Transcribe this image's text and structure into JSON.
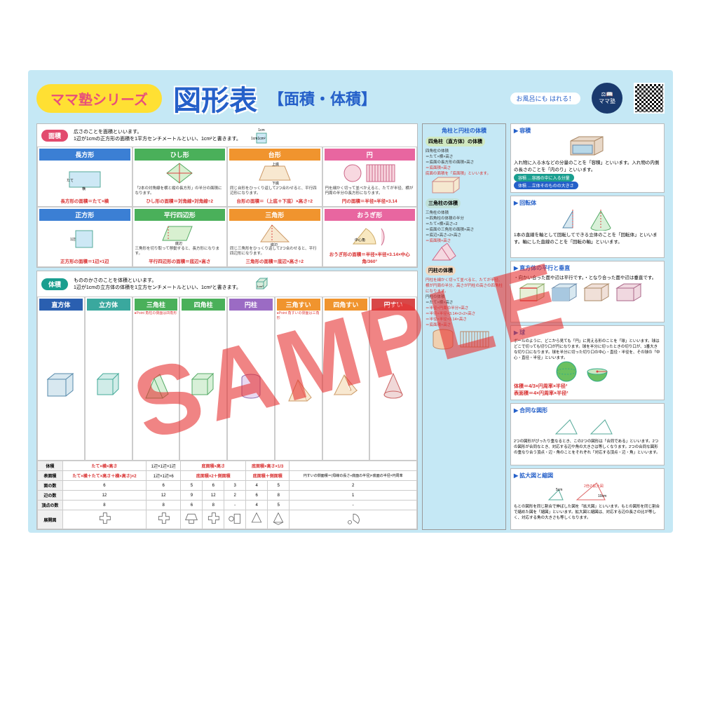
{
  "header": {
    "series": "ママ塾シリーズ",
    "title": "図形表",
    "subtitle": "【面積・体積】",
    "bath": "お風呂にも\nはれる！",
    "logo": "ママ塾"
  },
  "area": {
    "label": "面積",
    "intro": "広さのことを面積といいます。\n1辺が1cmの正方形の面積を1平方センチメートルといい、1cm²と書きます。",
    "shapes": [
      {
        "name": "長方形",
        "hc": "h-blue",
        "formula": "長方形の面積＝たて×横",
        "desc": ""
      },
      {
        "name": "ひし形",
        "hc": "h-green",
        "formula": "ひし形の面積＝対角線×対角線÷2",
        "desc": "「2本の対角線を横と縦の長方形」の半分の面積になります。"
      },
      {
        "name": "台形",
        "hc": "h-orange",
        "formula": "台形の面積＝（上底＋下底）×高さ÷2",
        "desc": "同じ台形をひっくり返して2つ合わせると、平行四辺形になります。"
      },
      {
        "name": "円",
        "hc": "h-pink",
        "formula": "円の面積＝半径×半径×3.14",
        "desc": "円を細かく切って並べかえると、たてが半径、横が円周の半分の長方形になります。"
      },
      {
        "name": "正方形",
        "hc": "h-blue",
        "formula": "正方形の面積＝1辺×1辺",
        "desc": ""
      },
      {
        "name": "平行四辺形",
        "hc": "h-green",
        "formula": "平行四辺形の面積＝底辺×高さ",
        "desc": "三角形を切り取って移動すると、長方形になります。"
      },
      {
        "name": "三角形",
        "hc": "h-orange",
        "formula": "三角形の面積＝底辺×高さ÷2",
        "desc": "同じ三角形をひっくり返して2つ合わせると、平行四辺形になります。"
      },
      {
        "name": "おうぎ形",
        "hc": "h-pink",
        "formula": "おうぎ形の面積＝半径×半径×3.14×中心角/360°",
        "desc": ""
      }
    ]
  },
  "volume": {
    "label": "体積",
    "intro": "もののかさのことを体積といいます。\n1辺が1cmの立方体の体積を1立方センチメートルといい、1cm³と書きます。",
    "solids": [
      {
        "name": "直方体",
        "hc": "h-dblue"
      },
      {
        "name": "立方体",
        "hc": "h-teal"
      },
      {
        "name": "三角柱",
        "hc": "h-green"
      },
      {
        "name": "四角柱",
        "hc": "h-green"
      },
      {
        "name": "円柱",
        "hc": "h-purple"
      },
      {
        "name": "三角すい",
        "hc": "h-orange"
      },
      {
        "name": "四角すい",
        "hc": "h-orange"
      },
      {
        "name": "円すい",
        "hc": "h-red"
      }
    ],
    "note_prism": "●Point 角柱の側面は四角形",
    "note_cone": "●Point 角すいの側面は三角形",
    "table": {
      "rows": [
        "体積",
        "表面積",
        "面の数",
        "辺の数",
        "頂点の数",
        "展開図"
      ],
      "vol": [
        "たて×横×高さ",
        "1辺×1辺×1辺",
        "底面積×高さ",
        "",
        "",
        "底面積×高さ×1/3",
        "",
        ""
      ],
      "surf": [
        "たて×横＋たて×高さ＋横×高さ)×2",
        "1辺×1辺×6",
        "底面積×2＋側面積",
        "",
        "",
        "底面積＋側面積",
        "",
        "円すいの側面積＝(母線の長さ÷底面の半径)×底面の半径×円周率"
      ],
      "faces": [
        "6",
        "6",
        "5",
        "6",
        "3",
        "4",
        "5",
        "2"
      ],
      "edges": [
        "12",
        "12",
        "9",
        "12",
        "2",
        "6",
        "8",
        "1"
      ],
      "verts": [
        "8",
        "8",
        "6",
        "8",
        "-",
        "4",
        "5",
        "-"
      ]
    }
  },
  "extra": {
    "prism_title": "角柱と円柱の体積",
    "prism_h": "四角柱（直方体）の体積",
    "prism_t": [
      "四角柱の体積",
      "＝たて×横×高さ",
      "＝底面の長方形の面積×高さ",
      "＝底面積×高さ",
      "底面の面積を「底面積」といいます。"
    ],
    "tri_h": "三角柱の体積",
    "tri_t": [
      "三角柱の体積",
      "＝四角柱の体積の半分",
      "＝たて×横×高さ÷2",
      "＝底面の三角形の面積×高さ",
      "＝底辺×高さ÷2×高さ",
      "＝底面積×高さ"
    ],
    "cyl_h": "円柱の体積",
    "cyl_t": [
      "円柱を細かく切って並べると、たてが半径、横が円周の半分、高さが円柱の高さの四角柱になります。",
      "円柱の体積",
      "＝たて×横×高さ",
      "＝半径×円周の半分×高さ",
      "＝半径×半径×3.14×2÷2×高さ",
      "＝半径×半径×3.14×高さ",
      "＝底面積×高さ"
    ]
  },
  "side": {
    "yoseki": {
      "h": "容積",
      "t": "入れ物に入る水などの分量のことを「容積」といいます。入れ物の内側の長さのことを「内のり」といいます。",
      "b1": "容積 …容器の中に入る分量",
      "b2": "体積 …立体そのものの大きさ"
    },
    "kaiten": {
      "h": "回転体",
      "t": "1本の直線を軸として回転してできる立体のことを「回転体」といいます。軸にした直線のことを「回転の軸」といいます。"
    },
    "heiko": {
      "h": "直方体の平行と垂直",
      "t": "・向かい合った面や辺は平行です。・となり合った面や辺は垂直です。",
      "items": [
        "■辺ADに対して 平行/垂直な辺",
        "■面アに対して 平行/垂直な面",
        "■面アに対して 平行/垂直な辺"
      ]
    },
    "kyu": {
      "h": "球",
      "t": "ボールのように、どこから見ても「円」に見える形のことを「球」といいます。球はどこで切っても切り口が円になります。球を半分に切ったときの切り口が、1番大きな切り口になります。球を半分に切った切り口の中心・直径・半径を、その球の「中心・直径・半径」といいます。",
      "f1": "体積＝4/3×円周率×半径³",
      "f2": "表面積＝4×円周率×半径²"
    },
    "godo": {
      "h": "合同な図形",
      "t": "2つの図形がぴったり重なるとき、この2つの図形は「合同である」といいます。2つの図形が合同なとき、対応する辺や角の大きさは等しくなります。2つの合同な図形の重なり合う頂点・辺・角のことをそれぞれ「対応する頂点・辺・角」といいます。"
    },
    "kakudai": {
      "h": "拡大図と縮図",
      "t": "もとの図形を同じ割合で伸ばした図を「拡大図」といいます。もとの図形を同じ割合で縮めた図を「縮図」といいます。拡大図と縮図は、対応する辺の長さの比が等しく、対応する角の大きさも等しくなります。"
    }
  },
  "sample": "SAMPLE",
  "colors": {
    "blue": "#3b7fd4",
    "green": "#4ab05a",
    "orange": "#f0942e",
    "pink": "#e866a0",
    "red": "#d83030",
    "teal": "#1a9e8f"
  }
}
